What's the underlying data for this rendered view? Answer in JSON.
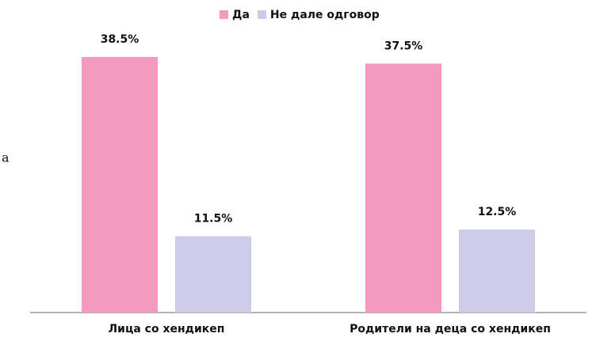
{
  "fragment": "a",
  "chart_data": {
    "type": "bar",
    "categories": [
      "Лица со хендикеп",
      "Родители на деца со хендикеп"
    ],
    "series": [
      {
        "name": "Да",
        "color": "#f49ac1",
        "values": [
          38.5,
          37.5
        ],
        "value_labels": [
          "38.5%",
          "37.5%"
        ]
      },
      {
        "name": "Не дале одговор",
        "color": "#cccce8",
        "values": [
          11.5,
          12.5
        ],
        "value_labels": [
          "11.5%",
          "12.5%"
        ]
      }
    ],
    "ylim": [
      0,
      40
    ]
  }
}
